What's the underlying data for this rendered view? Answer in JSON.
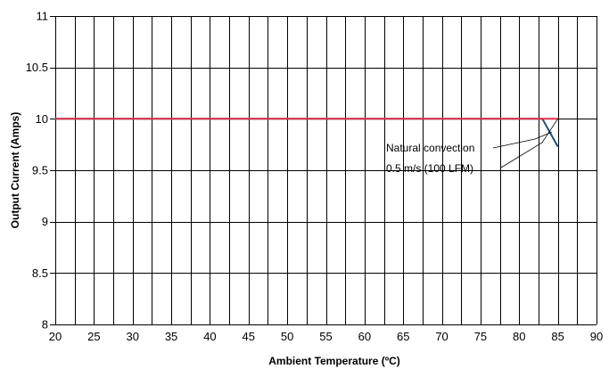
{
  "chart_data": {
    "type": "line",
    "title": "",
    "xlabel": "Ambient Temperature (ºC)",
    "ylabel": "Output Current (Amps)",
    "xlim": [
      20,
      90
    ],
    "ylim": [
      8,
      11
    ],
    "x_ticks": [
      20,
      25,
      30,
      35,
      40,
      45,
      50,
      55,
      60,
      65,
      70,
      75,
      80,
      85,
      90
    ],
    "x_tick_labels": [
      "20",
      "25",
      "30",
      "35",
      "40",
      "45",
      "50",
      "55",
      "60",
      "65",
      "70",
      "75",
      "80",
      "85",
      "90"
    ],
    "y_ticks": [
      8,
      8.5,
      9,
      9.5,
      10,
      10.5,
      11
    ],
    "y_tick_labels": [
      "8",
      "8.5",
      "9",
      "9.5",
      "10",
      "10.5",
      "11"
    ],
    "grid": true,
    "legend": "none",
    "series": [
      {
        "name": "Natural convection",
        "color": "#1f4e79",
        "points": [
          [
            20,
            10
          ],
          [
            83,
            10
          ],
          [
            85,
            9.73
          ]
        ]
      },
      {
        "name": "0.5 m/s (100 LFM)",
        "color": "#e0304a",
        "points": [
          [
            20,
            10
          ],
          [
            85,
            10
          ]
        ]
      }
    ],
    "annotations": [
      {
        "text": "Natural convection",
        "target_x": 84.2,
        "target_y": 9.87
      },
      {
        "text": "0.5 m/s (100 LFM)",
        "target_x": 85,
        "target_y": 10
      }
    ]
  }
}
